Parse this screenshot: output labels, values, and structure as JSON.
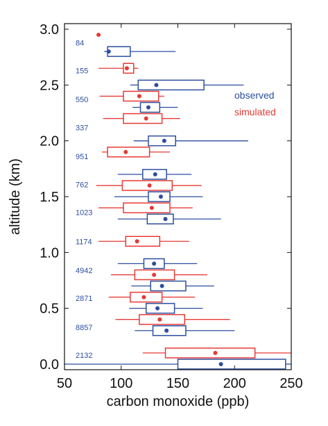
{
  "chart_data": {
    "type": "boxplot",
    "xlabel": "carbon monoxide (ppb)",
    "ylabel": "altitude (km)",
    "xlim": [
      50,
      250
    ],
    "ylim": [
      -0.05,
      3.05
    ],
    "x_ticks": [
      50,
      100,
      150,
      200,
      250
    ],
    "y_ticks": [
      0.0,
      0.5,
      1.0,
      1.5,
      2.0,
      2.5,
      3.0
    ],
    "y_tick_labels": [
      "0.0",
      "0.5",
      "1.0",
      "1.5",
      "2.0",
      "2.5",
      "3.0"
    ],
    "grid": false,
    "legend_position": "right",
    "colors": {
      "observed": "#2b4ea0",
      "simulated": "#e53a35",
      "axis": "#111111"
    },
    "series": [
      {
        "name": "observed",
        "color": "#2b4ea0",
        "boxes": [
          {
            "alt": 0.0,
            "whislo": 50,
            "q1": 150,
            "q3": 245,
            "whishi": 250,
            "mean": 188
          },
          {
            "alt": 0.3,
            "whislo": 112,
            "q1": 128,
            "q3": 157,
            "whishi": 200,
            "mean": 140
          },
          {
            "alt": 0.5,
            "whislo": 107,
            "q1": 122,
            "q3": 147,
            "whishi": 172,
            "mean": 132
          },
          {
            "alt": 0.7,
            "whislo": 109,
            "q1": 126,
            "q3": 157,
            "whishi": 182,
            "mean": 136
          },
          {
            "alt": 0.9,
            "whislo": 97,
            "q1": 120,
            "q3": 138,
            "whishi": 167,
            "mean": 129
          },
          {
            "alt": 1.3,
            "whislo": 97,
            "q1": 123,
            "q3": 146,
            "whishi": 188,
            "mean": 139
          },
          {
            "alt": 1.5,
            "whislo": 94,
            "q1": 124,
            "q3": 143,
            "whishi": 172,
            "mean": 135
          },
          {
            "alt": 1.7,
            "whislo": 97,
            "q1": 119,
            "q3": 140,
            "whishi": 162,
            "mean": 130
          },
          {
            "alt": 2.0,
            "whislo": 111,
            "q1": 124,
            "q3": 148,
            "whishi": 212,
            "mean": 138
          },
          {
            "alt": 2.3,
            "whislo": 110,
            "q1": 117,
            "q3": 134,
            "whishi": 150,
            "mean": 124
          },
          {
            "alt": 2.5,
            "whislo": 108,
            "q1": 115,
            "q3": 173,
            "whishi": 208,
            "mean": 131
          },
          {
            "alt": 2.8,
            "whislo": 85,
            "q1": 88,
            "q3": 108,
            "whishi": 148,
            "mean": 89
          }
        ]
      },
      {
        "name": "simulated",
        "color": "#e53a35",
        "boxes": [
          {
            "alt": 0.1,
            "whislo": 119,
            "q1": 139,
            "q3": 218,
            "whishi": 250,
            "mean": 183
          },
          {
            "alt": 0.4,
            "whislo": 95,
            "q1": 116,
            "q3": 156,
            "whishi": 196,
            "mean": 134
          },
          {
            "alt": 0.6,
            "whislo": 89,
            "q1": 108,
            "q3": 136,
            "whishi": 165,
            "mean": 120
          },
          {
            "alt": 0.8,
            "whislo": 91,
            "q1": 112,
            "q3": 147,
            "whishi": 176,
            "mean": 129
          },
          {
            "alt": 1.1,
            "whislo": 80,
            "q1": 104,
            "q3": 134,
            "whishi": 160,
            "mean": 114
          },
          {
            "alt": 1.4,
            "whislo": 80,
            "q1": 102,
            "q3": 143,
            "whishi": 163,
            "mean": 127
          },
          {
            "alt": 1.6,
            "whislo": 78,
            "q1": 101,
            "q3": 145,
            "whishi": 171,
            "mean": 125
          },
          {
            "alt": 1.9,
            "whislo": 83,
            "q1": 88,
            "q3": 125,
            "whishi": 143,
            "mean": 104
          },
          {
            "alt": 2.2,
            "whislo": 84,
            "q1": 102,
            "q3": 136,
            "whishi": 152,
            "mean": 122
          },
          {
            "alt": 2.4,
            "whislo": 81,
            "q1": 102,
            "q3": 133,
            "whishi": 138,
            "mean": 116
          },
          {
            "alt": 2.65,
            "whislo": 80,
            "q1": 102,
            "q3": 111,
            "whishi": 115,
            "mean": 105
          },
          {
            "alt": 2.95,
            "mean": 80
          }
        ]
      }
    ],
    "annotations": [
      {
        "text": "84",
        "alt": 2.88
      },
      {
        "text": "155",
        "alt": 2.63
      },
      {
        "text": "550",
        "alt": 2.37
      },
      {
        "text": "337",
        "alt": 2.12
      },
      {
        "text": "951",
        "alt": 1.86
      },
      {
        "text": "762",
        "alt": 1.61
      },
      {
        "text": "1023",
        "alt": 1.36
      },
      {
        "text": "1174",
        "alt": 1.1
      },
      {
        "text": "4942",
        "alt": 0.84
      },
      {
        "text": "2871",
        "alt": 0.59
      },
      {
        "text": "8857",
        "alt": 0.33
      },
      {
        "text": "2132",
        "alt": 0.08
      }
    ]
  }
}
